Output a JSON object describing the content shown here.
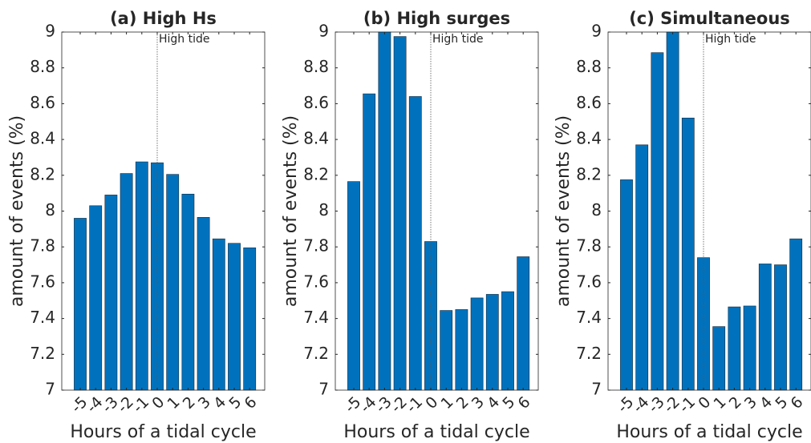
{
  "chart_data": [
    {
      "type": "bar",
      "title": "(a) High Hs",
      "x_label": "Hours of a tidal cycle",
      "y_label": "amount of events (%)",
      "categories": [
        "-5",
        "-4",
        "-3",
        "-2",
        "-1",
        "0",
        "1",
        "2",
        "3",
        "4",
        "5",
        "6"
      ],
      "values": [
        7.96,
        8.03,
        8.09,
        8.21,
        8.275,
        8.27,
        8.205,
        8.095,
        7.965,
        7.845,
        7.82,
        7.795
      ],
      "color": "#0072bd",
      "ylim": [
        7,
        9
      ],
      "yticks": [
        7,
        7.2,
        7.4,
        7.6,
        7.8,
        8,
        8.2,
        8.4,
        8.6,
        8.8,
        9
      ],
      "annotation": {
        "text": "High tide",
        "x": 0
      }
    },
    {
      "type": "bar",
      "title": "(b) High surges",
      "x_label": "Hours of a tidal cycle",
      "y_label": "amount of events (%)",
      "categories": [
        "-5",
        "-4",
        "-3",
        "-2",
        "-1",
        "0",
        "1",
        "2",
        "3",
        "4",
        "5",
        "6"
      ],
      "values": [
        8.165,
        8.655,
        9.0,
        8.975,
        8.64,
        7.83,
        7.445,
        7.45,
        7.515,
        7.535,
        7.55,
        7.745
      ],
      "color": "#0072bd",
      "ylim": [
        7,
        9
      ],
      "yticks": [
        7,
        7.2,
        7.4,
        7.6,
        7.8,
        8,
        8.2,
        8.4,
        8.6,
        8.8,
        9
      ],
      "annotation": {
        "text": "High tide",
        "x": 0
      }
    },
    {
      "type": "bar",
      "title": "(c) Simultaneous",
      "x_label": "Hours of a tidal cycle",
      "y_label": "amount of events (%)",
      "categories": [
        "-5",
        "-4",
        "-3",
        "-2",
        "-1",
        "0",
        "1",
        "2",
        "3",
        "4",
        "5",
        "6"
      ],
      "values": [
        8.175,
        8.37,
        8.885,
        9.0,
        8.52,
        7.74,
        7.355,
        7.465,
        7.47,
        7.705,
        7.7,
        7.845
      ],
      "color": "#0072bd",
      "ylim": [
        7,
        9
      ],
      "yticks": [
        7,
        7.2,
        7.4,
        7.6,
        7.8,
        8,
        8.2,
        8.4,
        8.6,
        8.8,
        9
      ],
      "annotation": {
        "text": "High tide",
        "x": 0
      }
    }
  ]
}
